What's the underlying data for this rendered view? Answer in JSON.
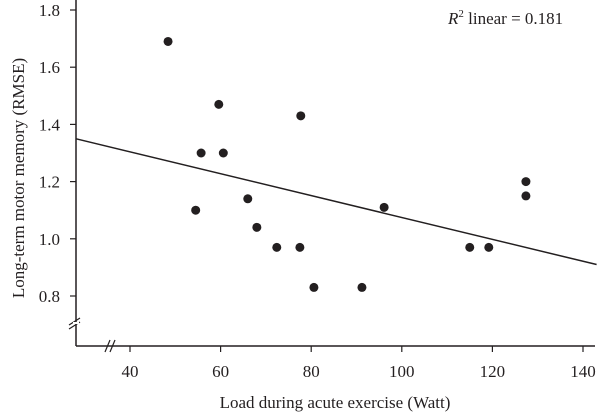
{
  "chart_data": {
    "type": "scatter",
    "title": "",
    "xlabel": "Load during acute exercise (Watt)",
    "ylabel": "Long-term motor memory (RMSE)",
    "xlim": [
      28,
      143
    ],
    "ylim": [
      0.62,
      1.84
    ],
    "xticks": [
      40,
      60,
      80,
      100,
      120,
      140
    ],
    "xtick_labels": [
      "40",
      "60",
      "80",
      "100",
      "120",
      "140"
    ],
    "yticks": [
      0.8,
      1.0,
      1.2,
      1.4,
      1.6,
      1.8
    ],
    "ytick_labels": [
      "0.8",
      "1.0",
      "1.2",
      "1.4",
      "1.6",
      "1.8"
    ],
    "axis_breaks": {
      "x": true,
      "y": true
    },
    "grid": false,
    "points": [
      {
        "x": 48.4,
        "y": 1.69
      },
      {
        "x": 59.6,
        "y": 1.47
      },
      {
        "x": 55.7,
        "y": 1.3
      },
      {
        "x": 60.6,
        "y": 1.3
      },
      {
        "x": 77.7,
        "y": 1.43
      },
      {
        "x": 54.5,
        "y": 1.1
      },
      {
        "x": 66.0,
        "y": 1.14
      },
      {
        "x": 68.0,
        "y": 1.04
      },
      {
        "x": 72.4,
        "y": 0.97
      },
      {
        "x": 77.5,
        "y": 0.97
      },
      {
        "x": 80.6,
        "y": 0.83
      },
      {
        "x": 91.2,
        "y": 0.83
      },
      {
        "x": 96.1,
        "y": 1.11
      },
      {
        "x": 115.0,
        "y": 0.97
      },
      {
        "x": 119.2,
        "y": 0.97
      },
      {
        "x": 127.4,
        "y": 1.2
      },
      {
        "x": 127.4,
        "y": 1.15
      }
    ],
    "fit_line": {
      "type": "linear",
      "x": [
        28,
        143
      ],
      "y": [
        1.35,
        0.91
      ]
    },
    "annotation": {
      "r_symbol": "R",
      "superscript": "2",
      "text": " linear = 0.181",
      "position": "top-right"
    },
    "colors": {
      "points": "#231f20",
      "line": "#231f20",
      "axis": "#231f20"
    }
  }
}
